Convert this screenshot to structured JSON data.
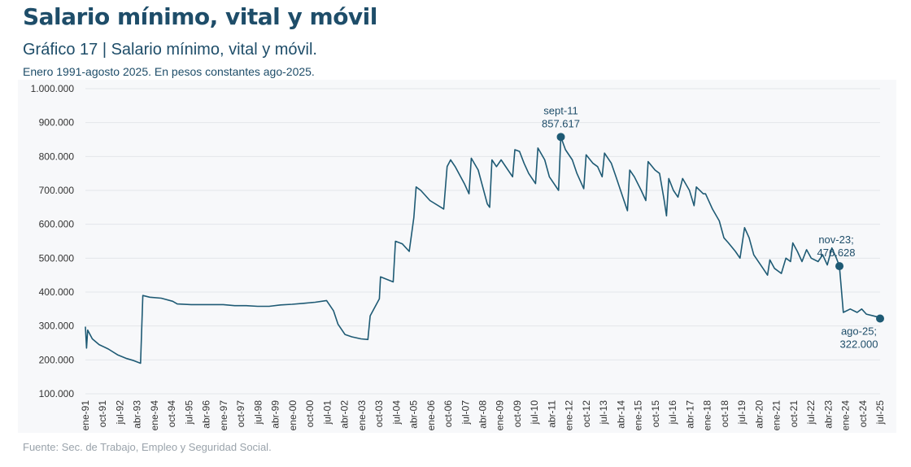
{
  "header": {
    "page_title": "Salario mínimo, vital y móvil",
    "chart_title": "Gráfico 17 | Salario mínimo, vital y móvil.",
    "chart_subtitle": "Enero 1991-agosto 2025. En pesos constantes ago-2025.",
    "source": "Fuente: Sec. de Trabajo, Empleo y Seguridad Social."
  },
  "colors": {
    "line": "#1e5a74",
    "grid": "#e3e6ea",
    "tick_text": "#333333",
    "annotation_text": "#1e4d69"
  },
  "chart_data": {
    "type": "line",
    "ylim": [
      100000,
      1000000
    ],
    "grid": true,
    "yticks": [
      {
        "value": 100000,
        "label": "100.000"
      },
      {
        "value": 200000,
        "label": "200.000"
      },
      {
        "value": 300000,
        "label": "300.000"
      },
      {
        "value": 400000,
        "label": "400.000"
      },
      {
        "value": 500000,
        "label": "500.000"
      },
      {
        "value": 600000,
        "label": "600.000"
      },
      {
        "value": 700000,
        "label": "700.000"
      },
      {
        "value": 800000,
        "label": "800.000"
      },
      {
        "value": 900000,
        "label": "900.000"
      },
      {
        "value": 1000000,
        "label": "1.000.000"
      }
    ],
    "xticks": [
      "ene-91",
      "oct-91",
      "jul-92",
      "abr-93",
      "ene-94",
      "oct-94",
      "jul-95",
      "abr-96",
      "ene-97",
      "oct-97",
      "jul-98",
      "abr-99",
      "ene-00",
      "oct-00",
      "jul-01",
      "abr-02",
      "ene-03",
      "oct-03",
      "jul-04",
      "abr-05",
      "ene-06",
      "oct-06",
      "jul-07",
      "abr-08",
      "ene-09",
      "oct-09",
      "jul-10",
      "abr-11",
      "ene-12",
      "oct-12",
      "jul-13",
      "abr-14",
      "ene-15",
      "oct-15",
      "jul-16",
      "abr-17",
      "ene-18",
      "oct-18",
      "jul-19",
      "abr-20",
      "ene-21",
      "oct-21",
      "jul-22",
      "abr-23",
      "ene-24",
      "oct-24",
      "jul-25"
    ],
    "series": [
      {
        "values": [
          [
            1991.0,
            298000
          ],
          [
            1991.05,
            235000
          ],
          [
            1991.1,
            288000
          ],
          [
            1991.3,
            262000
          ],
          [
            1991.6,
            245000
          ],
          [
            1992.0,
            232000
          ],
          [
            1992.4,
            215000
          ],
          [
            1992.8,
            204000
          ],
          [
            1993.1,
            198000
          ],
          [
            1993.4,
            190000
          ],
          [
            1993.5,
            390000
          ],
          [
            1993.8,
            385000
          ],
          [
            1994.3,
            382000
          ],
          [
            1994.8,
            373000
          ],
          [
            1995.0,
            365000
          ],
          [
            1995.6,
            363000
          ],
          [
            1996.5,
            363000
          ],
          [
            1997.0,
            363000
          ],
          [
            1997.5,
            360000
          ],
          [
            1998.0,
            360000
          ],
          [
            1998.5,
            358000
          ],
          [
            1999.0,
            358000
          ],
          [
            1999.5,
            362000
          ],
          [
            2000.0,
            364000
          ],
          [
            2000.5,
            367000
          ],
          [
            2001.0,
            370000
          ],
          [
            2001.5,
            375000
          ],
          [
            2001.8,
            345000
          ],
          [
            2002.0,
            305000
          ],
          [
            2002.3,
            275000
          ],
          [
            2002.6,
            268000
          ],
          [
            2003.0,
            262000
          ],
          [
            2003.3,
            260000
          ],
          [
            2003.4,
            330000
          ],
          [
            2003.8,
            380000
          ],
          [
            2003.85,
            445000
          ],
          [
            2004.4,
            430000
          ],
          [
            2004.5,
            550000
          ],
          [
            2004.8,
            542000
          ],
          [
            2005.1,
            520000
          ],
          [
            2005.3,
            620000
          ],
          [
            2005.4,
            710000
          ],
          [
            2005.6,
            700000
          ],
          [
            2006.0,
            670000
          ],
          [
            2006.6,
            645000
          ],
          [
            2006.75,
            770000
          ],
          [
            2006.9,
            790000
          ],
          [
            2007.1,
            770000
          ],
          [
            2007.5,
            720000
          ],
          [
            2007.7,
            690000
          ],
          [
            2007.8,
            795000
          ],
          [
            2008.1,
            760000
          ],
          [
            2008.5,
            660000
          ],
          [
            2008.6,
            650000
          ],
          [
            2008.7,
            790000
          ],
          [
            2008.9,
            770000
          ],
          [
            2009.1,
            790000
          ],
          [
            2009.6,
            740000
          ],
          [
            2009.7,
            820000
          ],
          [
            2009.9,
            815000
          ],
          [
            2010.1,
            780000
          ],
          [
            2010.3,
            750000
          ],
          [
            2010.6,
            720000
          ],
          [
            2010.7,
            825000
          ],
          [
            2011.0,
            790000
          ],
          [
            2011.2,
            740000
          ],
          [
            2011.6,
            700000
          ],
          [
            2011.7,
            857617
          ],
          [
            2011.9,
            820000
          ],
          [
            2012.2,
            790000
          ],
          [
            2012.4,
            750000
          ],
          [
            2012.7,
            705000
          ],
          [
            2012.8,
            805000
          ],
          [
            2013.1,
            780000
          ],
          [
            2013.3,
            770000
          ],
          [
            2013.5,
            740000
          ],
          [
            2013.6,
            810000
          ],
          [
            2013.9,
            780000
          ],
          [
            2014.1,
            740000
          ],
          [
            2014.4,
            680000
          ],
          [
            2014.6,
            640000
          ],
          [
            2014.7,
            760000
          ],
          [
            2014.9,
            740000
          ],
          [
            2015.2,
            700000
          ],
          [
            2015.4,
            670000
          ],
          [
            2015.5,
            785000
          ],
          [
            2015.8,
            760000
          ],
          [
            2016.0,
            750000
          ],
          [
            2016.2,
            670000
          ],
          [
            2016.3,
            625000
          ],
          [
            2016.4,
            735000
          ],
          [
            2016.6,
            700000
          ],
          [
            2016.8,
            680000
          ],
          [
            2017.0,
            735000
          ],
          [
            2017.3,
            700000
          ],
          [
            2017.5,
            655000
          ],
          [
            2017.6,
            710000
          ],
          [
            2017.9,
            690000
          ],
          [
            2018.0,
            690000
          ],
          [
            2018.3,
            645000
          ],
          [
            2018.6,
            610000
          ],
          [
            2018.8,
            560000
          ],
          [
            2019.0,
            545000
          ],
          [
            2019.3,
            520000
          ],
          [
            2019.5,
            500000
          ],
          [
            2019.7,
            590000
          ],
          [
            2019.9,
            560000
          ],
          [
            2020.1,
            510000
          ],
          [
            2020.5,
            470000
          ],
          [
            2020.7,
            450000
          ],
          [
            2020.8,
            495000
          ],
          [
            2021.0,
            470000
          ],
          [
            2021.3,
            455000
          ],
          [
            2021.5,
            500000
          ],
          [
            2021.7,
            490000
          ],
          [
            2021.8,
            545000
          ],
          [
            2022.0,
            520000
          ],
          [
            2022.2,
            490000
          ],
          [
            2022.4,
            525000
          ],
          [
            2022.6,
            500000
          ],
          [
            2022.9,
            490000
          ],
          [
            2023.1,
            510000
          ],
          [
            2023.3,
            480000
          ],
          [
            2023.5,
            530000
          ],
          [
            2023.7,
            500000
          ],
          [
            2023.83,
            476628
          ],
          [
            2024.0,
            340000
          ],
          [
            2024.3,
            350000
          ],
          [
            2024.6,
            340000
          ],
          [
            2024.8,
            350000
          ],
          [
            2025.0,
            335000
          ],
          [
            2025.3,
            330000
          ],
          [
            2025.6,
            325000
          ],
          [
            2025.6,
            322000
          ]
        ]
      }
    ],
    "annotations": [
      {
        "x": 2011.7,
        "y": 857617,
        "label": "sept-11",
        "value_label": "857.617",
        "position": "above"
      },
      {
        "x": 2023.83,
        "y": 476628,
        "label": "nov-23;",
        "value_label": "476.628",
        "position": "above"
      },
      {
        "x": 2025.6,
        "y": 322000,
        "label": "ago-25;",
        "value_label": "322.000",
        "position": "below"
      }
    ]
  }
}
